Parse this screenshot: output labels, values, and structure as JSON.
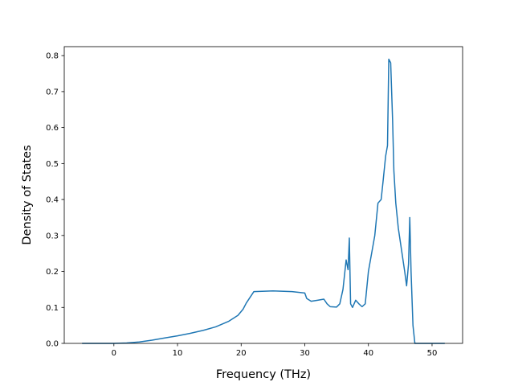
{
  "chart_data": {
    "type": "line",
    "title": "",
    "xlabel": "Frequency (THz)",
    "ylabel": "Density of States",
    "xlim": [
      -7.8,
      54.8
    ],
    "ylim": [
      0,
      0.825
    ],
    "xticks": [
      0,
      10,
      20,
      30,
      40,
      50
    ],
    "yticks": [
      0.0,
      0.1,
      0.2,
      0.3,
      0.4,
      0.5,
      0.6,
      0.7,
      0.8
    ],
    "grid": false,
    "legend": "none",
    "series": [
      {
        "color": "#1f77b4",
        "x": [
          -5,
          -2,
          0,
          2,
          4,
          6,
          8,
          10,
          12,
          14,
          16,
          18,
          19.5,
          20.3,
          20.8,
          22,
          25,
          28,
          30,
          30.3,
          31,
          32,
          33,
          33.5,
          34,
          35,
          35.5,
          36,
          36.5,
          36.8,
          37,
          37.2,
          37.5,
          38,
          38.5,
          39,
          39.5,
          40,
          41,
          41.5,
          42,
          42.3,
          42.7,
          43,
          43.2,
          43.5,
          43.8,
          44,
          44.3,
          44.7,
          45.2,
          45.7,
          46,
          46.3,
          46.5,
          46.7,
          47,
          47.3,
          48,
          50,
          52
        ],
        "y": [
          0,
          0,
          0,
          0.001,
          0.004,
          0.009,
          0.015,
          0.021,
          0.028,
          0.036,
          0.046,
          0.061,
          0.078,
          0.095,
          0.112,
          0.144,
          0.146,
          0.144,
          0.14,
          0.125,
          0.117,
          0.12,
          0.123,
          0.11,
          0.102,
          0.101,
          0.11,
          0.15,
          0.232,
          0.205,
          0.293,
          0.11,
          0.1,
          0.12,
          0.11,
          0.102,
          0.11,
          0.2,
          0.3,
          0.39,
          0.4,
          0.45,
          0.52,
          0.55,
          0.79,
          0.78,
          0.62,
          0.48,
          0.39,
          0.32,
          0.26,
          0.2,
          0.16,
          0.22,
          0.35,
          0.2,
          0.05,
          0,
          0,
          0,
          0
        ]
      }
    ]
  }
}
